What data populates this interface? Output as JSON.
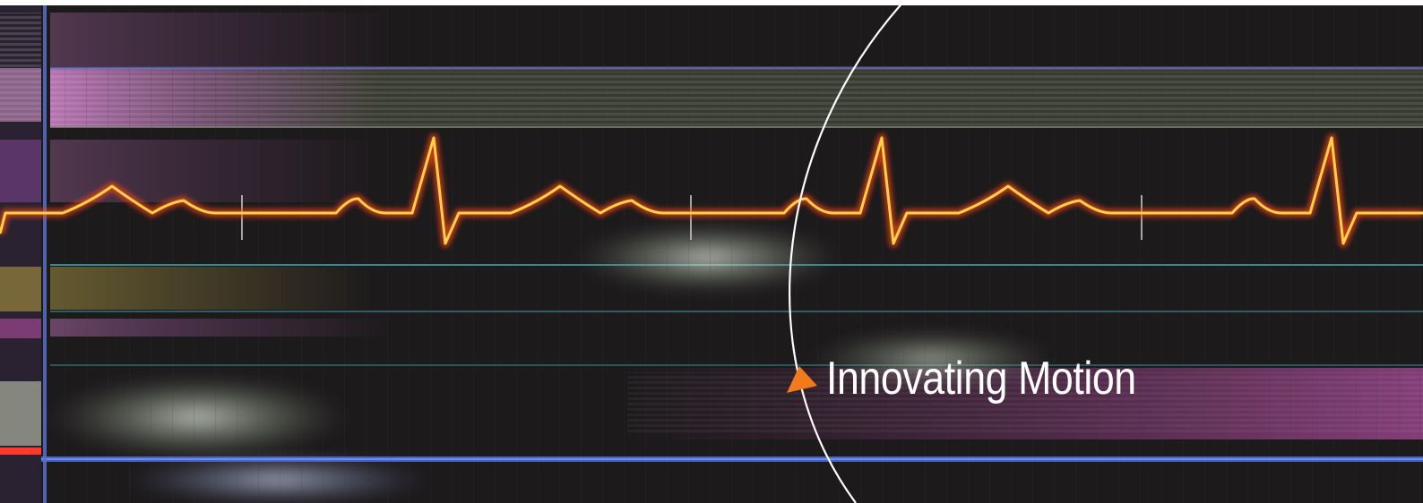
{
  "banner": {
    "tagline": "Innovating Motion",
    "marker_icon": "orange-triangle-arrow-icon",
    "colors": {
      "background": "#1d1a1c",
      "waveform_core": "#ffd24a",
      "waveform_glow": "#ff5a1a",
      "marker": "#f07a1c",
      "arc": "#ffffff",
      "blue_line": "#4a6ad8",
      "teal_line": "#3aa7b0",
      "magenta_band": "#c06ab8"
    }
  }
}
